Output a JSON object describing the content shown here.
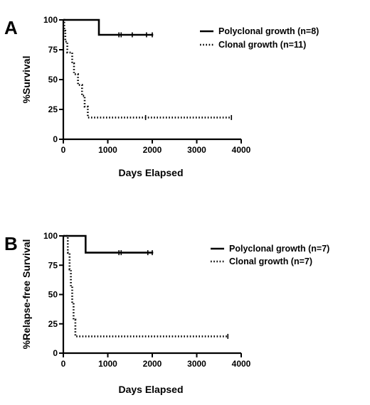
{
  "chart_data": [
    {
      "type": "line",
      "panel_label": "A",
      "xlabel": "Days Elapsed",
      "ylabel": "%Survival",
      "xlim": [
        0,
        4000
      ],
      "ylim": [
        0,
        100
      ],
      "x_ticks": [
        0,
        1000,
        2000,
        3000,
        4000
      ],
      "y_ticks": [
        0,
        25,
        50,
        75,
        100
      ],
      "grid": false,
      "legend_position": "right",
      "series": [
        {
          "name": "Polyclonal growth (n=8)",
          "style": "solid",
          "x": [
            0,
            800,
            800,
            2020
          ],
          "y": [
            100,
            100,
            87.5,
            87.5
          ],
          "censored": [
            [
              1250,
              87.5
            ],
            [
              1300,
              87.5
            ],
            [
              1550,
              87.5
            ],
            [
              1870,
              87.5
            ],
            [
              2000,
              87.5
            ]
          ]
        },
        {
          "name": "Clonal growth (n=11)",
          "style": "dotted",
          "x": [
            0,
            20,
            20,
            45,
            45,
            90,
            90,
            200,
            200,
            240,
            240,
            330,
            330,
            420,
            420,
            480,
            480,
            550,
            550,
            3780
          ],
          "y": [
            100,
            100,
            90.9,
            90.9,
            81.8,
            81.8,
            72.7,
            72.7,
            63.6,
            63.6,
            54.5,
            54.5,
            45.5,
            45.5,
            36.4,
            36.4,
            27.3,
            27.3,
            18.2,
            18.2
          ],
          "censored": [
            [
              1850,
              18.2
            ],
            [
              3780,
              18.2
            ]
          ]
        }
      ]
    },
    {
      "type": "line",
      "panel_label": "B",
      "xlabel": "Days Elapsed",
      "ylabel": "%Relapse-free Survival",
      "xlim": [
        0,
        4000
      ],
      "ylim": [
        0,
        100
      ],
      "x_ticks": [
        0,
        1000,
        2000,
        3000,
        4000
      ],
      "y_ticks": [
        0,
        25,
        50,
        75,
        100
      ],
      "grid": false,
      "legend_position": "right",
      "series": [
        {
          "name": "Polyclonal growth (n=7)",
          "style": "solid",
          "x": [
            0,
            500,
            500,
            2020
          ],
          "y": [
            100,
            100,
            85.7,
            85.7
          ],
          "censored": [
            [
              1250,
              85.7
            ],
            [
              1300,
              85.7
            ],
            [
              1900,
              85.7
            ],
            [
              2000,
              85.7
            ]
          ]
        },
        {
          "name": "Clonal growth (n=7)",
          "style": "dotted",
          "x": [
            0,
            100,
            100,
            140,
            140,
            170,
            170,
            200,
            200,
            230,
            230,
            270,
            270,
            3700
          ],
          "y": [
            100,
            100,
            85.7,
            85.7,
            71.4,
            71.4,
            57.1,
            57.1,
            42.9,
            42.9,
            28.6,
            28.6,
            14.3,
            14.3
          ],
          "censored": [
            [
              3700,
              14.3
            ]
          ]
        }
      ]
    }
  ]
}
